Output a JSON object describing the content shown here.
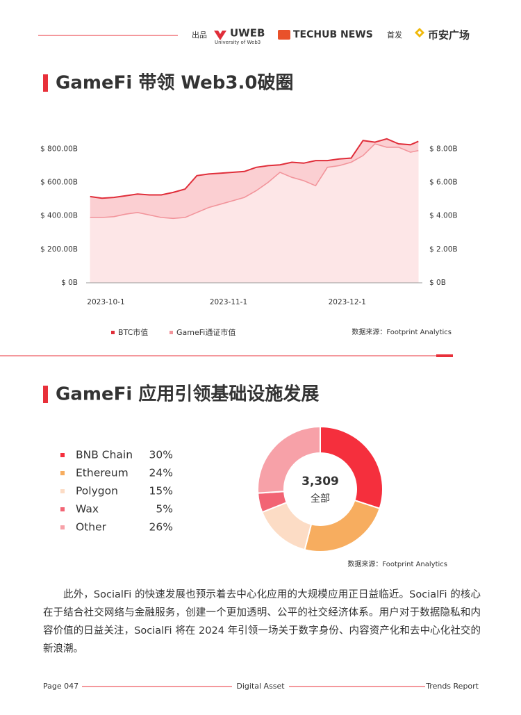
{
  "header": {
    "credit": "出品",
    "brand1": "UWEB",
    "brand1_sub": "University of Web3",
    "brand2": "TECHUB NEWS",
    "release": "首发",
    "brand3": "币安广场"
  },
  "chart_data": [
    {
      "type": "area",
      "title": "GameFi 带领 Web3.0破圈",
      "source": "数据来源：Footprint Analytics",
      "x": [
        "2023-9-27",
        "2023-9-30",
        "2023-10-3",
        "2023-10-6",
        "2023-10-9",
        "2023-10-12",
        "2023-10-15",
        "2023-10-18",
        "2023-10-21",
        "2023-10-24",
        "2023-10-27",
        "2023-10-30",
        "2023-11-2",
        "2023-11-5",
        "2023-11-8",
        "2023-11-11",
        "2023-11-14",
        "2023-11-17",
        "2023-11-20",
        "2023-11-23",
        "2023-11-26",
        "2023-11-29",
        "2023-12-2",
        "2023-12-5",
        "2023-12-8",
        "2023-12-11",
        "2023-12-14",
        "2023-12-17",
        "2023-12-19"
      ],
      "xlim": [
        "2023-9-26",
        "2023-12-20"
      ],
      "xticks": [
        "2023-10-1",
        "2023-11-1",
        "2023-12-1"
      ],
      "series": [
        {
          "name": "BTC市值",
          "color": "#e02e3a",
          "fill": "#fbcfd2",
          "axis": "y",
          "values": [
            515,
            505,
            510,
            520,
            530,
            525,
            525,
            540,
            560,
            640,
            650,
            655,
            660,
            665,
            690,
            700,
            705,
            720,
            715,
            730,
            730,
            740,
            745,
            850,
            840,
            860,
            830,
            825,
            845
          ]
        },
        {
          "name": "GameFi通证市值",
          "color": "#f2949b",
          "fill": "#fde6e7",
          "axis": "y2",
          "values": [
            3.9,
            3.9,
            3.95,
            4.1,
            4.2,
            4.05,
            3.9,
            3.85,
            3.9,
            4.2,
            4.5,
            4.7,
            4.9,
            5.1,
            5.5,
            6.0,
            6.6,
            6.3,
            6.1,
            5.8,
            6.9,
            7.0,
            7.2,
            7.6,
            8.3,
            8.1,
            8.1,
            7.8,
            7.9
          ]
        }
      ],
      "ylim": [
        0,
        880
      ],
      "yticks": [
        {
          "value": 0,
          "label": "$ 0B"
        },
        {
          "value": 200,
          "label": "$ 200.00B"
        },
        {
          "value": 400,
          "label": "$ 400.00B"
        },
        {
          "value": 600,
          "label": "$ 600.00B"
        },
        {
          "value": 800,
          "label": "$ 800.00B"
        }
      ],
      "y2lim": [
        0,
        8.8
      ],
      "y2ticks": [
        {
          "value": 0,
          "label": "$ 0B"
        },
        {
          "value": 2,
          "label": "$ 2.00B"
        },
        {
          "value": 4,
          "label": "$ 4.00B"
        },
        {
          "value": 6,
          "label": "$ 6.00B"
        },
        {
          "value": 8,
          "label": "$ 8.00B"
        }
      ],
      "legend": "bottom"
    },
    {
      "type": "donut",
      "title": "GameFi 应用引领基础设施发展",
      "source": "数据来源：Footprint Analytics",
      "categories": [
        "BNB Chain",
        "Ethereum",
        "Polygon",
        "Wax",
        "Other"
      ],
      "values": [
        30,
        24,
        15,
        5,
        26
      ],
      "value_labels": [
        "30%",
        "24%",
        "15%",
        "5%",
        "26%"
      ],
      "colors": [
        "#f52f3d",
        "#f7ad5f",
        "#fcdcc5",
        "#f26474",
        "#f7a1a8"
      ],
      "center_text": "3,309",
      "center_caption": "全部"
    }
  ],
  "paragraph": "此外，SocialFi 的快速发展也预示着去中心化应用的大规模应用正日益临近。SocialFi 的核心在于结合社交网络与金融服务，创建一个更加透明、公平的社交经济体系。用户对于数据隐私和内容价值的日益关注，SocialFi 将在 2024 年引领一场关于数字身份、内容资产化和去中心化社交的新浪潮。",
  "footer": {
    "page": "Page 047",
    "center": "Digital Asset",
    "right": "Trends Report"
  }
}
